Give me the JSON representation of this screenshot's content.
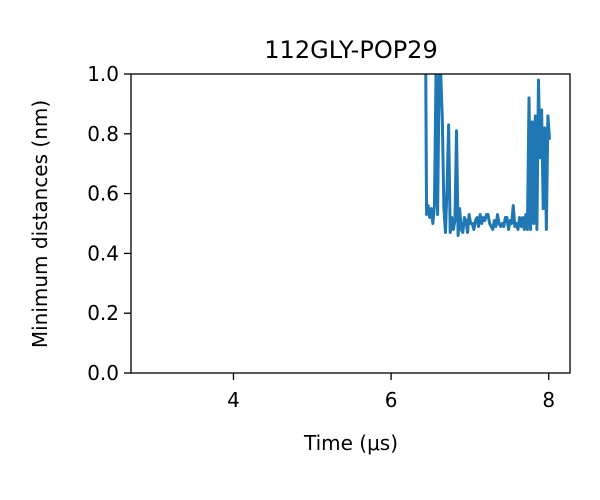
{
  "chart_data": {
    "type": "line",
    "title": "112GLY-POP29",
    "xlabel": "Time (μs)",
    "ylabel": "Minimum distances (nm)",
    "xlim": [
      2.7,
      8.27
    ],
    "ylim": [
      0.0,
      1.0
    ],
    "xticks": [
      4,
      6,
      8
    ],
    "yticks": [
      0.0,
      0.2,
      0.4,
      0.6,
      0.8,
      1.0
    ],
    "xtick_labels": [
      "4",
      "6",
      "8"
    ],
    "ytick_labels": [
      "0.0",
      "0.2",
      "0.4",
      "0.6",
      "0.8",
      "1.0"
    ],
    "grid": false,
    "legend": "none",
    "series": [
      {
        "color": "#1f77b4",
        "x": [
          6.44,
          6.45,
          6.47,
          6.49,
          6.51,
          6.53,
          6.55,
          6.57,
          6.59,
          6.61,
          6.63,
          6.65,
          6.67,
          6.69,
          6.71,
          6.73,
          6.75,
          6.77,
          6.79,
          6.81,
          6.83,
          6.85,
          6.87,
          6.89,
          6.91,
          6.93,
          6.95,
          6.97,
          6.99,
          7.01,
          7.03,
          7.05,
          7.07,
          7.09,
          7.11,
          7.13,
          7.15,
          7.17,
          7.19,
          7.21,
          7.23,
          7.25,
          7.27,
          7.29,
          7.31,
          7.33,
          7.35,
          7.37,
          7.39,
          7.41,
          7.43,
          7.45,
          7.47,
          7.49,
          7.51,
          7.53,
          7.55,
          7.57,
          7.59,
          7.61,
          7.63,
          7.65,
          7.67,
          7.69,
          7.71,
          7.73,
          7.75,
          7.77,
          7.79,
          7.81,
          7.83,
          7.85,
          7.87,
          7.89,
          7.91,
          7.93,
          7.95,
          7.97,
          7.99,
          8.01
        ],
        "y": [
          1.0,
          0.53,
          0.56,
          0.52,
          0.55,
          0.5,
          0.56,
          1.0,
          0.53,
          1.0,
          1.0,
          0.85,
          0.55,
          0.47,
          0.62,
          0.83,
          0.47,
          0.52,
          0.48,
          0.51,
          0.81,
          0.46,
          0.55,
          0.48,
          0.47,
          0.52,
          0.51,
          0.47,
          0.53,
          0.5,
          0.5,
          0.48,
          0.51,
          0.52,
          0.49,
          0.53,
          0.5,
          0.52,
          0.51,
          0.53,
          0.53,
          0.5,
          0.49,
          0.48,
          0.51,
          0.49,
          0.53,
          0.5,
          0.49,
          0.5,
          0.49,
          0.52,
          0.52,
          0.48,
          0.51,
          0.5,
          0.56,
          0.49,
          0.5,
          0.48,
          0.52,
          0.49,
          0.52,
          0.48,
          0.53,
          0.48,
          0.92,
          0.48,
          0.84,
          0.5,
          0.86,
          0.48,
          0.98,
          0.72,
          0.88,
          0.55,
          0.82,
          0.48,
          0.86,
          0.78
        ]
      }
    ]
  }
}
